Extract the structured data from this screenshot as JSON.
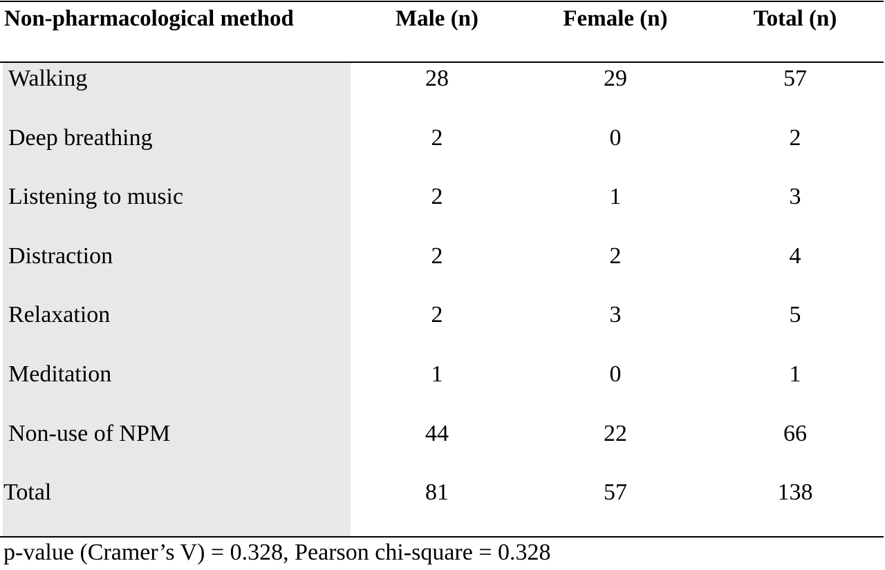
{
  "table": {
    "headers": {
      "method": "Non-pharmacological method",
      "male": "Male (n)",
      "female": "Female (n)",
      "total": "Total (n)"
    },
    "rows": [
      {
        "method": "Walking",
        "male": "28",
        "female": "29",
        "total": "57"
      },
      {
        "method": "Deep breathing",
        "male": "2",
        "female": "0",
        "total": "2"
      },
      {
        "method": "Listening to music",
        "male": "2",
        "female": "1",
        "total": "3"
      },
      {
        "method": "Distraction",
        "male": "2",
        "female": "2",
        "total": "4"
      },
      {
        "method": "Relaxation",
        "male": "2",
        "female": "3",
        "total": "5"
      },
      {
        "method": "Meditation",
        "male": "1",
        "female": "0",
        "total": "1"
      },
      {
        "method": "Non-use of NPM",
        "male": "44",
        "female": "22",
        "total": "66"
      },
      {
        "method": "Total",
        "male": "81",
        "female": "57",
        "total": "138"
      }
    ],
    "footnote": "p-value (Cramer’s V) = 0.328, Pearson chi-square = 0.328"
  },
  "colors": {
    "first_column_shading": "#e8e8e8",
    "rules": "#000000"
  }
}
